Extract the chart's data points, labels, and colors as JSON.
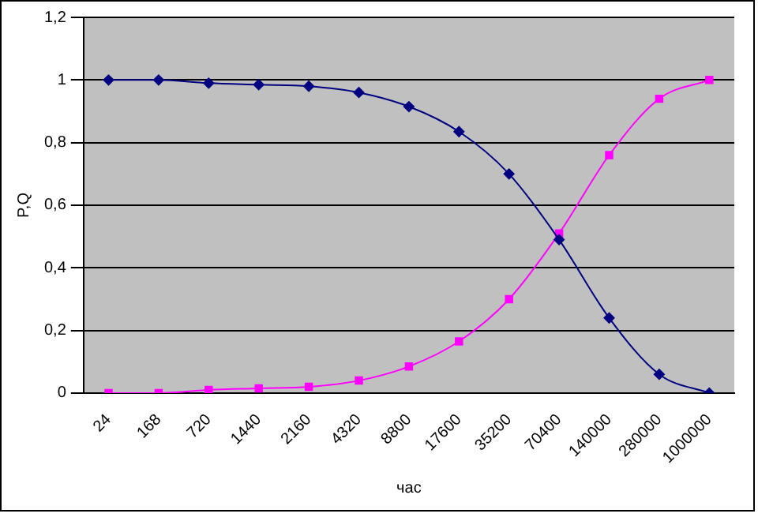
{
  "chart_data": {
    "type": "line",
    "xlabel": "час",
    "ylabel": "P,Q",
    "categories": [
      "24",
      "168",
      "720",
      "1440",
      "2160",
      "4320",
      "8800",
      "17600",
      "35200",
      "70400",
      "140000",
      "280000",
      "1000000"
    ],
    "series": [
      {
        "color": "#000080",
        "marker": "diamond",
        "values": [
          1,
          1,
          0.99,
          0.985,
          0.98,
          0.96,
          0.915,
          0.835,
          0.7,
          0.49,
          0.24,
          0.06,
          0
        ]
      },
      {
        "color": "#ff00ff",
        "marker": "square",
        "values": [
          0,
          0,
          0.01,
          0.015,
          0.02,
          0.04,
          0.085,
          0.165,
          0.3,
          0.51,
          0.76,
          0.94,
          1
        ]
      }
    ],
    "ylim": [
      0,
      1.2
    ],
    "yticks": [
      {
        "value": 0,
        "label": "0"
      },
      {
        "value": 0.2,
        "label": "0,2"
      },
      {
        "value": 0.4,
        "label": "0,4"
      },
      {
        "value": 0.6,
        "label": "0,6"
      },
      {
        "value": 0.8,
        "label": "0,8"
      },
      {
        "value": 1,
        "label": "1"
      },
      {
        "value": 1.2,
        "label": "1,2"
      }
    ],
    "grid": "y",
    "legend": false,
    "line_style": "solid"
  }
}
